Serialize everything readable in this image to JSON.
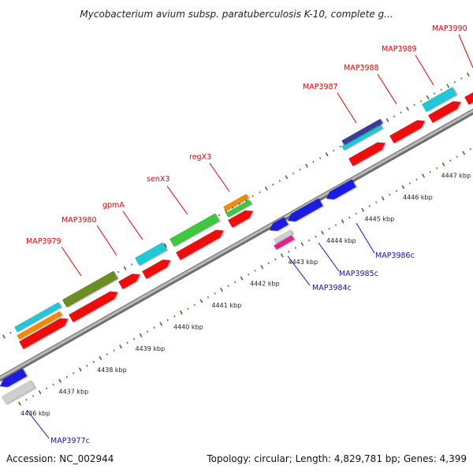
{
  "title": "Mycobacterium avium subsp. paratuberculosis K-10, complete g...",
  "footer": {
    "accession": "Accession: NC_002944",
    "summary": "Topology: circular; Length: 4,829,781 bp; Genes: 4,399"
  },
  "colors": {
    "forward_label": "#e00000",
    "reverse_label": "#1010c0",
    "backbone": "#9a9a9a",
    "tick": "#2e7d1e",
    "cds_red": "#ee1111",
    "cds_blue": "#1a1ae0",
    "cyan": "#20c8d8",
    "orange": "#f08c00",
    "green": "#3cc83c",
    "olive": "#6b8e23",
    "navy": "#3a3a9a",
    "grey": "#cfcfcf",
    "magenta": "#e0208c"
  },
  "scale_labels": [
    "4436 kbp",
    "4437 kbp",
    "4438 kbp",
    "4439 kbp",
    "4440 kbp",
    "4441 kbp",
    "4442 kbp",
    "4443 kbp",
    "4444 kbp",
    "4445 kbp",
    "4446 kbp",
    "4447 kbp"
  ],
  "gene_labels": {
    "forward": [
      "MAP3979",
      "MAP3980",
      "gpmA",
      "senX3",
      "regX3",
      "MAP3987",
      "MAP3988",
      "MAP3989",
      "MAP3990"
    ],
    "reverse": [
      "MAP3977c",
      "MAP3984c",
      "MAP3985c",
      "MAP3986c"
    ]
  }
}
